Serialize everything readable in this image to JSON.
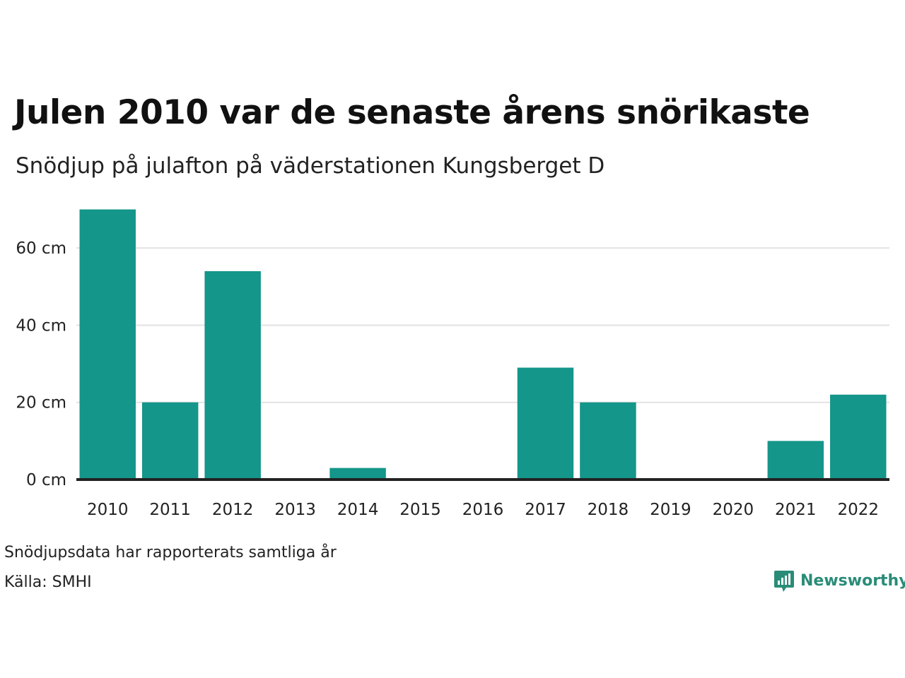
{
  "header": {
    "title": "Julen 2010 var de senaste årens snörikaste",
    "subtitle": "Snödjup på julafton på väderstationen Kungsberget D"
  },
  "footer": {
    "note": "Snödjupsdata har rapporterats samtliga år",
    "source": "Källa: SMHI",
    "logo_text": "Newsworthy",
    "logo_icon": "bar-chart-speech-icon"
  },
  "colors": {
    "bar": "#14968A",
    "grid": "#E2E2E2",
    "axis": "#222222",
    "logo": "#2A8C78"
  },
  "chart_data": {
    "type": "bar",
    "categories": [
      "2010",
      "2011",
      "2012",
      "2013",
      "2014",
      "2015",
      "2016",
      "2017",
      "2018",
      "2019",
      "2020",
      "2021",
      "2022"
    ],
    "values": [
      70,
      20,
      54,
      0,
      3,
      0,
      0,
      29,
      20,
      0,
      0,
      10,
      22
    ],
    "ylim": [
      0,
      70
    ],
    "yticks": [
      0,
      20,
      40,
      60
    ],
    "ytick_labels": [
      "0 cm",
      "20 cm",
      "40 cm",
      "60 cm"
    ],
    "unit": "cm",
    "grid": true,
    "legend": "none"
  }
}
